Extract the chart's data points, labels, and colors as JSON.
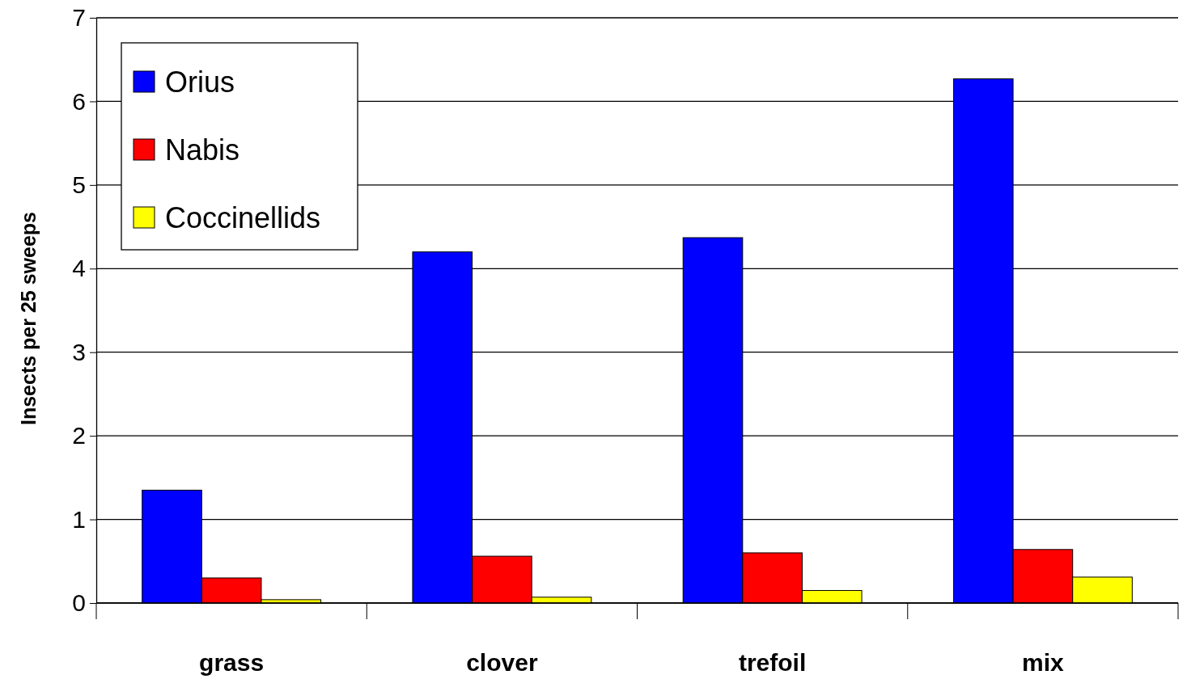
{
  "chart_data": {
    "type": "bar",
    "ylabel": "Insects per 25 sweeps",
    "categories": [
      "grass",
      "clover",
      "trefoil",
      "mix"
    ],
    "series": [
      {
        "name": "Orius",
        "color": "#0000ff",
        "values": [
          1.35,
          4.2,
          4.37,
          6.27
        ]
      },
      {
        "name": "Nabis",
        "color": "#ff0000",
        "values": [
          0.3,
          0.56,
          0.6,
          0.64
        ]
      },
      {
        "name": "Coccinellids",
        "color": "#ffff00",
        "values": [
          0.04,
          0.07,
          0.15,
          0.31
        ]
      }
    ],
    "ylim": [
      0,
      7
    ],
    "yticks": [
      0,
      1,
      2,
      3,
      4,
      5,
      6,
      7
    ],
    "grid": "y",
    "legend": "top left"
  }
}
